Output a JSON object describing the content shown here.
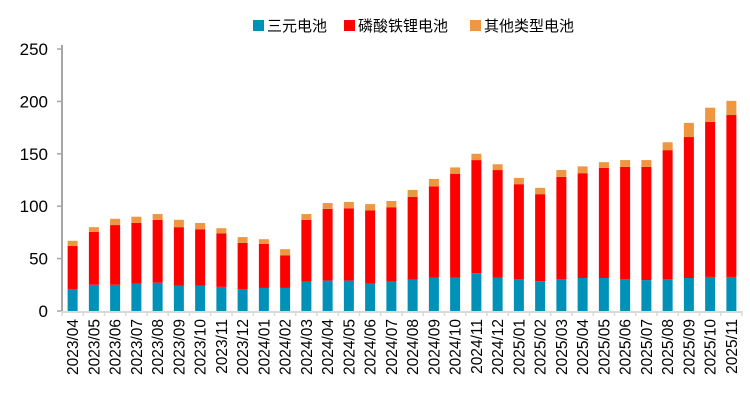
{
  "chart_data": {
    "type": "bar",
    "stacked": true,
    "title": "",
    "xlabel": "",
    "ylabel": "",
    "ylim": [
      0,
      250
    ],
    "yticks": [
      0,
      50,
      100,
      150,
      200,
      250
    ],
    "grid": false,
    "legend_position": "top",
    "categories": [
      "2023/04",
      "2023/05",
      "2023/06",
      "2023/07",
      "2023/08",
      "2023/09",
      "2023/10",
      "2023/11",
      "2023/12",
      "2024/01",
      "2024/02",
      "2024/03",
      "2024/04",
      "2024/05",
      "2024/06",
      "2024/07",
      "2024/08",
      "2024/09",
      "2024/10",
      "2024/11",
      "2024/12",
      "2025/01",
      "2025/02",
      "2025/03",
      "2025/04",
      "2025/05",
      "2025/06",
      "2025/07",
      "2025/08",
      "2025/09",
      "2025/10",
      "2025/11"
    ],
    "series": [
      {
        "name": "三元电池",
        "color": "#0091B8",
        "values": [
          21,
          25,
          25,
          26,
          27,
          24,
          24,
          23,
          21,
          22,
          22,
          28,
          29,
          29,
          26,
          28,
          30,
          32,
          32,
          36,
          32,
          30.5,
          28.5,
          30.5,
          31.5,
          31.5,
          30.5,
          29.5,
          30.5,
          31.5,
          32.5,
          32.5
        ]
      },
      {
        "name": "磷酸铁锂电池",
        "color": "#FF0000",
        "values": [
          41,
          50.5,
          57,
          58,
          60,
          56,
          54,
          51,
          44,
          42,
          31,
          59,
          68.5,
          69,
          70,
          71,
          79,
          87,
          99,
          108,
          102.5,
          90.5,
          83,
          97.5,
          100,
          105,
          107,
          108,
          123,
          134.5,
          148,
          154.5
        ]
      },
      {
        "name": "其他类型电池",
        "color": "#EE9640",
        "values": [
          5,
          4.5,
          6,
          6,
          5.5,
          7,
          6,
          5,
          5.5,
          4.5,
          6,
          5.5,
          5.5,
          6,
          6,
          6,
          6.5,
          7,
          6,
          6,
          5.5,
          6,
          6,
          6.5,
          6.5,
          5.5,
          6.5,
          6.5,
          7.5,
          13.5,
          13.5,
          13.5
        ]
      }
    ]
  }
}
